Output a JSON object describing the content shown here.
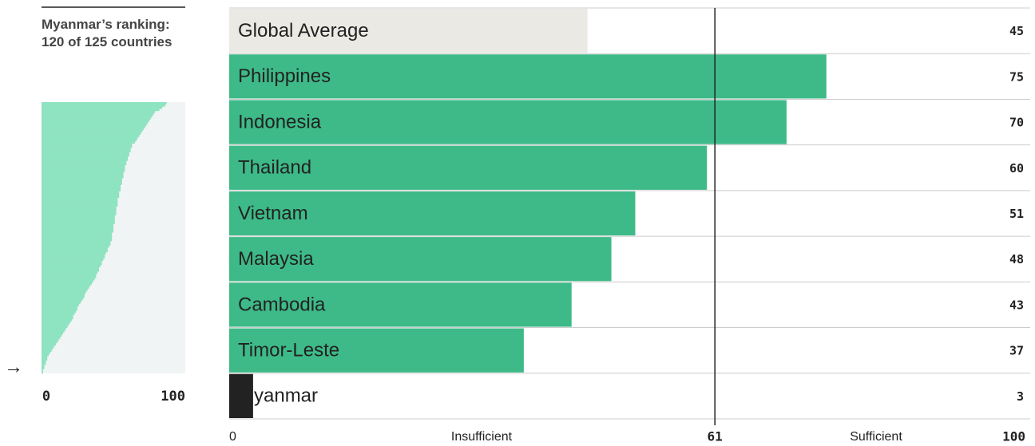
{
  "chart_data": [
    {
      "type": "hbar",
      "categories": [
        "Global Average",
        "Philippines",
        "Indonesia",
        "Thailand",
        "Vietnam",
        "Malaysia",
        "Cambodia",
        "Timor-Leste",
        "Myanmar"
      ],
      "values": [
        45,
        75,
        70,
        60,
        51,
        48,
        43,
        37,
        3
      ],
      "colors": [
        "#ebe9e4",
        "#3dba88",
        "#3dba88",
        "#3dba88",
        "#3dba88",
        "#3dba88",
        "#3dba88",
        "#3dba88",
        "#222222"
      ],
      "xlim": [
        0,
        100
      ],
      "xticks": [
        0,
        61,
        100
      ],
      "annotations": [
        "Insufficient",
        "Sufficient"
      ]
    },
    {
      "type": "hbar",
      "title": "Myanmar’s ranking: 120 of 125 countries",
      "values": [
        87,
        86,
        84,
        82,
        79,
        78,
        77,
        76,
        75,
        74,
        73,
        72,
        71,
        70,
        69,
        68,
        67,
        66,
        65,
        63,
        63,
        62,
        62,
        61,
        61,
        60,
        60,
        59,
        59,
        58,
        58,
        58,
        57,
        57,
        57,
        56,
        56,
        56,
        55,
        55,
        55,
        54,
        54,
        54,
        53,
        53,
        53,
        53,
        52,
        52,
        52,
        52,
        51,
        51,
        51,
        51,
        50,
        50,
        50,
        50,
        49,
        49,
        49,
        49,
        48,
        48,
        47,
        46,
        46,
        45,
        44,
        44,
        43,
        42,
        42,
        41,
        40,
        40,
        39,
        38,
        38,
        37,
        36,
        35,
        34,
        33,
        32,
        31,
        30,
        30,
        29,
        28,
        27,
        26,
        25,
        25,
        24,
        23,
        22,
        22,
        21,
        20,
        19,
        18,
        17,
        16,
        15,
        14,
        13,
        12,
        11,
        10,
        9,
        8,
        7,
        6,
        5,
        4,
        4,
        3,
        3,
        2,
        2,
        1,
        1
      ],
      "color": "#8ee3c1",
      "xlim": [
        0,
        100
      ],
      "xticks": [
        0,
        100
      ]
    }
  ]
}
